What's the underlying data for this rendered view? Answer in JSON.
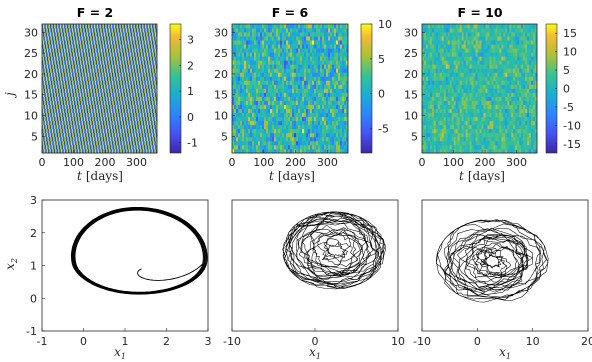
{
  "chart_data": [
    {
      "type": "heatmap",
      "title": "F = 2",
      "xlabel_var": "t",
      "xlabel_unit": "[days]",
      "ylabel": "j",
      "xticks": [
        "0",
        "100",
        "200",
        "300"
      ],
      "yticks": [
        "5",
        "10",
        "15",
        "20",
        "25",
        "30"
      ],
      "xlim": [
        0,
        365
      ],
      "ylim": [
        1,
        32
      ],
      "colorbar": {
        "ticks": [
          "-1",
          "0",
          "1",
          "2",
          "3"
        ],
        "range": [
          -1.4,
          3.6
        ]
      },
      "pattern": {
        "kind": "traveling-wave",
        "amplitude": 2.2,
        "offset": 1.1,
        "stripe_period_days": 9,
        "slope_days_per_j": 2.2
      }
    },
    {
      "type": "heatmap",
      "title": "F = 6",
      "xlabel_var": "t",
      "xlabel_unit": "[days]",
      "xticks": [
        "0",
        "100",
        "200",
        "300"
      ],
      "yticks": [
        "5",
        "10",
        "15",
        "20",
        "25",
        "30"
      ],
      "xlim": [
        0,
        365
      ],
      "ylim": [
        1,
        32
      ],
      "colorbar": {
        "ticks": [
          "-5",
          "0",
          "5",
          "10"
        ],
        "range": [
          -8.5,
          10
        ]
      },
      "pattern": {
        "kind": "chaotic",
        "mean": 1.2,
        "spread": 4.2
      }
    },
    {
      "type": "heatmap",
      "title": "F = 10",
      "xlabel_var": "t",
      "xlabel_unit": "[days]",
      "xticks": [
        "0",
        "100",
        "200",
        "300"
      ],
      "yticks": [
        "5",
        "10",
        "15",
        "20",
        "25",
        "30"
      ],
      "xlim": [
        0,
        365
      ],
      "ylim": [
        1,
        32
      ],
      "colorbar": {
        "ticks": [
          "-15",
          "-10",
          "-5",
          "0",
          "5",
          "10",
          "15"
        ],
        "range": [
          -17.5,
          17.5
        ]
      },
      "pattern": {
        "kind": "chaotic",
        "mean": 2.3,
        "spread": 5.0
      }
    },
    {
      "type": "line",
      "subtype": "phase-portrait",
      "xlabel": "x1",
      "ylabel": "x2",
      "xlim": [
        -1,
        3
      ],
      "ylim": [
        -1,
        3
      ],
      "xticks": [
        "-1",
        "0",
        "1",
        "2",
        "3"
      ],
      "yticks": [
        "-1",
        "0",
        "1",
        "2",
        "3"
      ],
      "trajectory": {
        "kind": "limit-cycle",
        "loops": 5,
        "transient_start": [
          1.4,
          0.9
        ]
      }
    },
    {
      "type": "line",
      "subtype": "phase-portrait",
      "xlabel": "x1",
      "xlim": [
        -10,
        10
      ],
      "ylim": [
        -10,
        10
      ],
      "xticks": [
        "-10",
        "0",
        "10"
      ],
      "trajectory": {
        "kind": "chaotic",
        "center": [
          2.3,
          2.3
        ],
        "radius": 4.6
      }
    },
    {
      "type": "line",
      "subtype": "phase-portrait",
      "xlabel": "x1",
      "xlim": [
        -10,
        20
      ],
      "ylim": [
        -10,
        20
      ],
      "xticks": [
        "-10",
        "0",
        "10",
        "20"
      ],
      "trajectory": {
        "kind": "chaotic",
        "center": [
          2.7,
          6.0
        ],
        "radius": 7.5
      }
    }
  ]
}
